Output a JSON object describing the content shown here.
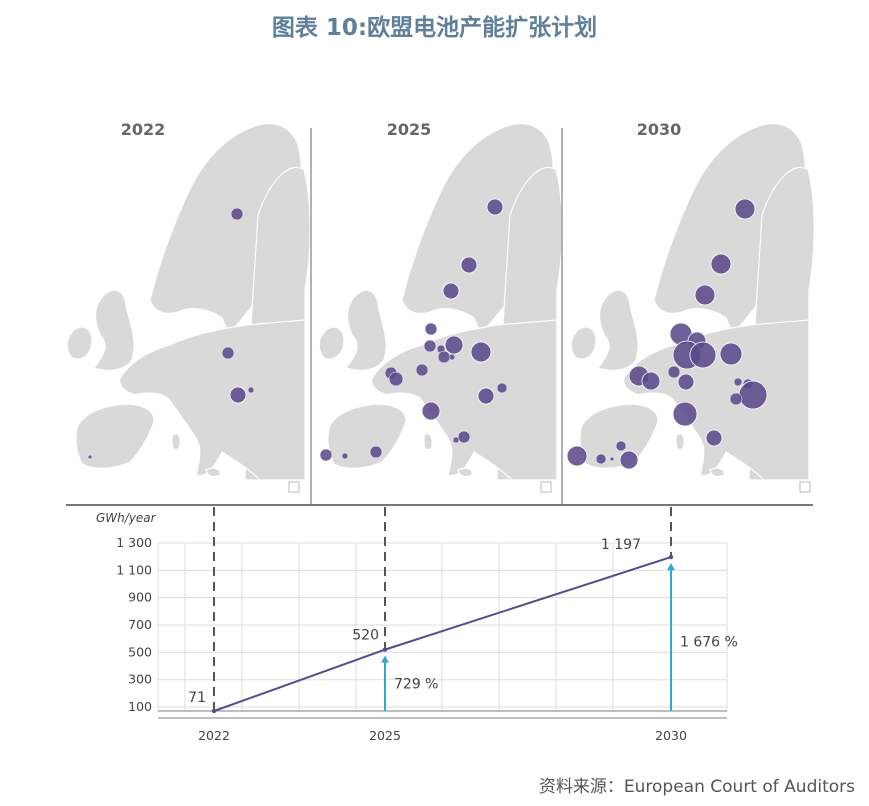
{
  "title": "图表 10:欧盟电池产能扩张计划",
  "source": "资料来源：European Court of Auditors",
  "panels": [
    {
      "year": "2022",
      "sites": [
        [
          237,
          214,
          6
        ],
        [
          228,
          353,
          6
        ],
        [
          238,
          395,
          8
        ],
        [
          251,
          390,
          3
        ],
        [
          90,
          457,
          2
        ]
      ]
    },
    {
      "year": "2025",
      "sites": [
        [
          495,
          207,
          8
        ],
        [
          469,
          265,
          8
        ],
        [
          451,
          291,
          8
        ],
        [
          431,
          329,
          6
        ],
        [
          454,
          345,
          9
        ],
        [
          430,
          346,
          6
        ],
        [
          441,
          349,
          4
        ],
        [
          452,
          357,
          3
        ],
        [
          444,
          357,
          6
        ],
        [
          481,
          352,
          10
        ],
        [
          391,
          373,
          6
        ],
        [
          396,
          379,
          7
        ],
        [
          422,
          370,
          6
        ],
        [
          486,
          396,
          8
        ],
        [
          502,
          388,
          5
        ],
        [
          431,
          411,
          9
        ],
        [
          464,
          437,
          6
        ],
        [
          456,
          440,
          3
        ],
        [
          376,
          452,
          6
        ],
        [
          345,
          456,
          3
        ],
        [
          326,
          455,
          6
        ]
      ]
    },
    {
      "year": "2030",
      "sites": [
        [
          745,
          209,
          10
        ],
        [
          721,
          264,
          10
        ],
        [
          705,
          295,
          10
        ],
        [
          681,
          334,
          11
        ],
        [
          697,
          341,
          9
        ],
        [
          687,
          355,
          14
        ],
        [
          703,
          355,
          13
        ],
        [
          731,
          354,
          11
        ],
        [
          674,
          372,
          6
        ],
        [
          686,
          382,
          8
        ],
        [
          639,
          376,
          10
        ],
        [
          651,
          381,
          9
        ],
        [
          685,
          414,
          12
        ],
        [
          714,
          438,
          8
        ],
        [
          738,
          382,
          4
        ],
        [
          748,
          384,
          5
        ],
        [
          753,
          395,
          14
        ],
        [
          736,
          399,
          6
        ],
        [
          621,
          446,
          5
        ],
        [
          629,
          460,
          9
        ],
        [
          601,
          459,
          5
        ],
        [
          577,
          456,
          10
        ],
        [
          612,
          459,
          2
        ]
      ]
    }
  ],
  "chart_data": {
    "type": "line",
    "ylabel": "GWh/year",
    "x": [
      "2022",
      "2025",
      "2030"
    ],
    "values": [
      71,
      520,
      1197
    ],
    "value_labels": [
      "71",
      "520",
      "1 197"
    ],
    "y_ticks": [
      100,
      300,
      500,
      700,
      900,
      1100,
      1300
    ],
    "y_tick_labels": [
      "100",
      "300",
      "500",
      "700",
      "900",
      "1 100",
      "1 300"
    ],
    "ylim": [
      71,
      1300
    ],
    "growth_labels": [
      {
        "at": "2025",
        "label": "729 %"
      },
      {
        "at": "2030",
        "label": "1 676 %"
      }
    ],
    "colors": {
      "line": "#5b4a8b",
      "arrow": "#33a6d4",
      "grid": "#dddddd",
      "site": "#5b4a8b",
      "land": "#d9d9d9"
    }
  }
}
